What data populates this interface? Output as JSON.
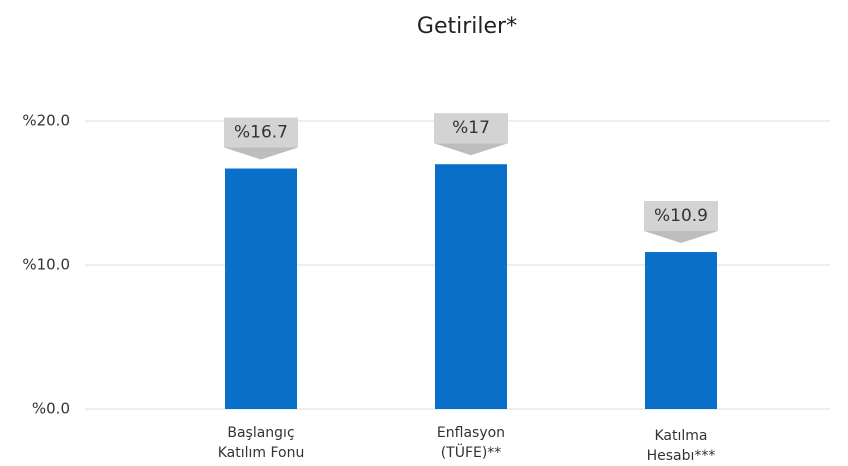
{
  "chart_data": {
    "type": "bar",
    "title": "Getiriler*",
    "categories": [
      [
        "Başlangıç",
        "Katılım Fonu"
      ],
      [
        "Enflasyon",
        "(TÜFE)**"
      ],
      [
        "Katılma",
        "Hesabı***"
      ]
    ],
    "values": [
      16.7,
      17,
      10.9
    ],
    "value_labels": [
      "%16.7",
      "%17",
      "%10.9"
    ],
    "color": "#0a6fc9",
    "ylim": [
      0,
      20
    ],
    "yticks": [
      {
        "value": 0,
        "label": "%0.0"
      },
      {
        "value": 10,
        "label": "%10.0"
      },
      {
        "value": 20,
        "label": "%20.0"
      }
    ],
    "grid": true
  }
}
